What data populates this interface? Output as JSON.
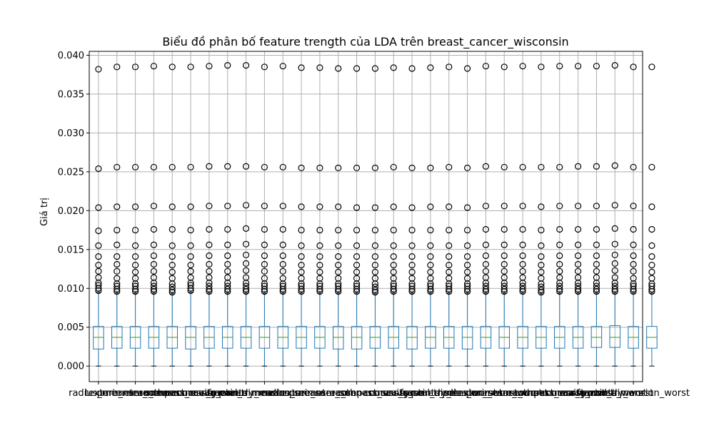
{
  "chart_data": {
    "type": "box",
    "title": "Biểu đồ phân bố feature trength của LDA trên breast_cancer_wisconsin",
    "xlabel": "",
    "ylabel": "Giá trị",
    "ylim": [
      -0.002,
      0.0405
    ],
    "yticks": [
      0.0,
      0.005,
      0.01,
      0.015,
      0.02,
      0.025,
      0.03,
      0.035,
      0.04
    ],
    "ytick_labels": [
      "0.000",
      "0.005",
      "0.010",
      "0.015",
      "0.020",
      "0.025",
      "0.030",
      "0.035",
      "0.040"
    ],
    "grid": true,
    "colors": {
      "box": "#1f77b4",
      "median": "#2ca02c",
      "whisker": "#1f77b4",
      "cap": "#000000",
      "flier": "#000000",
      "grid": "#b0b0b0"
    },
    "categories": [
      "radius_mean",
      "texture_mean",
      "perimeter_mean",
      "area_mean",
      "smoothness_mean",
      "compactness_mean",
      "concavity_mean",
      "concave points_mean",
      "symmetry_mean",
      "fractal_dimension_mean",
      "radius_se",
      "texture_se",
      "perimeter_se",
      "area_se",
      "smoothness_se",
      "compactness_se",
      "concavity_se",
      "concave points_se",
      "symmetry_se",
      "fractal_dimension_se",
      "radius_worst",
      "texture_worst",
      "perimeter_worst",
      "area_worst",
      "smoothness_worst",
      "compactness_worst",
      "concavity_worst",
      "concave points_worst",
      "symmetry_worst",
      "fractal_dimension_worst"
    ],
    "boxes": [
      {
        "whislo": 0.0,
        "q1": 0.0022,
        "med": 0.0037,
        "q3": 0.0051,
        "whishi": 0.0095,
        "fliers": [
          0.0097,
          0.01,
          0.0104,
          0.0107,
          0.0114,
          0.0122,
          0.013,
          0.0141,
          0.0155,
          0.0174,
          0.0204,
          0.0254,
          0.0382
        ]
      },
      {
        "whislo": 0.0,
        "q1": 0.0023,
        "med": 0.0037,
        "q3": 0.0051,
        "whishi": 0.0094,
        "fliers": [
          0.0096,
          0.0099,
          0.0103,
          0.0106,
          0.0113,
          0.0122,
          0.0131,
          0.0141,
          0.0156,
          0.0175,
          0.0205,
          0.0256,
          0.0385
        ]
      },
      {
        "whislo": 0.0,
        "q1": 0.0023,
        "med": 0.0037,
        "q3": 0.0051,
        "whishi": 0.0094,
        "fliers": [
          0.0096,
          0.0099,
          0.0103,
          0.0106,
          0.0113,
          0.0121,
          0.013,
          0.0141,
          0.0155,
          0.0175,
          0.0205,
          0.0256,
          0.0385
        ]
      },
      {
        "whislo": 0.0,
        "q1": 0.0023,
        "med": 0.0037,
        "q3": 0.0051,
        "whishi": 0.0094,
        "fliers": [
          0.0096,
          0.0099,
          0.0103,
          0.0107,
          0.0114,
          0.0122,
          0.0131,
          0.0142,
          0.0156,
          0.0176,
          0.0206,
          0.0256,
          0.0386
        ]
      },
      {
        "whislo": 0.0,
        "q1": 0.0023,
        "med": 0.0037,
        "q3": 0.0051,
        "whishi": 0.0093,
        "fliers": [
          0.0095,
          0.0098,
          0.0102,
          0.0106,
          0.0113,
          0.0121,
          0.013,
          0.0141,
          0.0155,
          0.0176,
          0.0205,
          0.0256,
          0.0385
        ]
      },
      {
        "whislo": 0.0,
        "q1": 0.0022,
        "med": 0.0037,
        "q3": 0.0051,
        "whishi": 0.0095,
        "fliers": [
          0.0097,
          0.01,
          0.0104,
          0.0107,
          0.0114,
          0.0122,
          0.013,
          0.0141,
          0.0155,
          0.0175,
          0.0205,
          0.0256,
          0.0385
        ]
      },
      {
        "whislo": 0.0,
        "q1": 0.0023,
        "med": 0.0037,
        "q3": 0.0051,
        "whishi": 0.0094,
        "fliers": [
          0.0096,
          0.0099,
          0.0103,
          0.0107,
          0.0114,
          0.0122,
          0.0131,
          0.0142,
          0.0156,
          0.0176,
          0.0206,
          0.0257,
          0.0386
        ]
      },
      {
        "whislo": 0.0,
        "q1": 0.0023,
        "med": 0.0037,
        "q3": 0.0051,
        "whishi": 0.0094,
        "fliers": [
          0.0096,
          0.0099,
          0.0103,
          0.0107,
          0.0114,
          0.0122,
          0.0131,
          0.0142,
          0.0156,
          0.0176,
          0.0206,
          0.0257,
          0.0387
        ]
      },
      {
        "whislo": 0.0,
        "q1": 0.0023,
        "med": 0.0037,
        "q3": 0.0051,
        "whishi": 0.0094,
        "fliers": [
          0.0096,
          0.0099,
          0.0103,
          0.0107,
          0.0114,
          0.0123,
          0.0132,
          0.0143,
          0.0157,
          0.0177,
          0.0207,
          0.0257,
          0.0387
        ]
      },
      {
        "whislo": 0.0,
        "q1": 0.0023,
        "med": 0.0037,
        "q3": 0.0051,
        "whishi": 0.0094,
        "fliers": [
          0.0096,
          0.0099,
          0.0103,
          0.0106,
          0.0113,
          0.0122,
          0.0131,
          0.0142,
          0.0156,
          0.0176,
          0.0206,
          0.0256,
          0.0385
        ]
      },
      {
        "whislo": 0.0,
        "q1": 0.0023,
        "med": 0.0037,
        "q3": 0.0051,
        "whishi": 0.0094,
        "fliers": [
          0.0096,
          0.0099,
          0.0103,
          0.0106,
          0.0113,
          0.0122,
          0.0131,
          0.0142,
          0.0156,
          0.0176,
          0.0206,
          0.0256,
          0.0386
        ]
      },
      {
        "whislo": 0.0,
        "q1": 0.0023,
        "med": 0.0037,
        "q3": 0.0051,
        "whishi": 0.0094,
        "fliers": [
          0.0096,
          0.0099,
          0.0103,
          0.0106,
          0.0113,
          0.0121,
          0.013,
          0.0141,
          0.0155,
          0.0175,
          0.0205,
          0.0255,
          0.0384
        ]
      },
      {
        "whislo": 0.0,
        "q1": 0.0023,
        "med": 0.0037,
        "q3": 0.0051,
        "whishi": 0.0094,
        "fliers": [
          0.0096,
          0.0099,
          0.0103,
          0.0106,
          0.0113,
          0.0121,
          0.013,
          0.0141,
          0.0155,
          0.0175,
          0.0205,
          0.0255,
          0.0384
        ]
      },
      {
        "whislo": 0.0,
        "q1": 0.0022,
        "med": 0.0037,
        "q3": 0.0051,
        "whishi": 0.0094,
        "fliers": [
          0.0096,
          0.0099,
          0.0103,
          0.0106,
          0.0113,
          0.0121,
          0.013,
          0.0141,
          0.0155,
          0.0175,
          0.0205,
          0.0255,
          0.0383
        ]
      },
      {
        "whislo": 0.0,
        "q1": 0.0022,
        "med": 0.0037,
        "q3": 0.0051,
        "whishi": 0.0094,
        "fliers": [
          0.0096,
          0.0099,
          0.0103,
          0.0106,
          0.0113,
          0.0121,
          0.013,
          0.0141,
          0.0155,
          0.0175,
          0.0204,
          0.0255,
          0.0383
        ]
      },
      {
        "whislo": 0.0,
        "q1": 0.0023,
        "med": 0.0037,
        "q3": 0.0051,
        "whishi": 0.0093,
        "fliers": [
          0.0095,
          0.0098,
          0.0102,
          0.0106,
          0.0113,
          0.0121,
          0.013,
          0.0141,
          0.0155,
          0.0175,
          0.0204,
          0.0255,
          0.0383
        ]
      },
      {
        "whislo": 0.0,
        "q1": 0.0023,
        "med": 0.0037,
        "q3": 0.0051,
        "whishi": 0.0094,
        "fliers": [
          0.0096,
          0.0099,
          0.0103,
          0.0106,
          0.0113,
          0.0121,
          0.013,
          0.0141,
          0.0155,
          0.0175,
          0.0205,
          0.0256,
          0.0384
        ]
      },
      {
        "whislo": 0.0,
        "q1": 0.0022,
        "med": 0.0037,
        "q3": 0.0051,
        "whishi": 0.0094,
        "fliers": [
          0.0096,
          0.0099,
          0.0103,
          0.0106,
          0.0113,
          0.0121,
          0.013,
          0.0141,
          0.0155,
          0.0175,
          0.0204,
          0.0255,
          0.0383
        ]
      },
      {
        "whislo": 0.0,
        "q1": 0.0023,
        "med": 0.0037,
        "q3": 0.0051,
        "whishi": 0.0094,
        "fliers": [
          0.0096,
          0.0099,
          0.0103,
          0.0106,
          0.0113,
          0.0121,
          0.013,
          0.0141,
          0.0155,
          0.0175,
          0.0205,
          0.0255,
          0.0384
        ]
      },
      {
        "whislo": 0.0,
        "q1": 0.0023,
        "med": 0.0037,
        "q3": 0.0051,
        "whishi": 0.0094,
        "fliers": [
          0.0096,
          0.0099,
          0.0103,
          0.0106,
          0.0113,
          0.0121,
          0.013,
          0.0141,
          0.0155,
          0.0175,
          0.0205,
          0.0256,
          0.0385
        ]
      },
      {
        "whislo": 0.0,
        "q1": 0.0022,
        "med": 0.0037,
        "q3": 0.0051,
        "whishi": 0.0094,
        "fliers": [
          0.0096,
          0.0099,
          0.0103,
          0.0106,
          0.0113,
          0.0121,
          0.013,
          0.0141,
          0.0155,
          0.0175,
          0.0204,
          0.0255,
          0.0383
        ]
      },
      {
        "whislo": 0.0,
        "q1": 0.0023,
        "med": 0.0037,
        "q3": 0.0051,
        "whishi": 0.0094,
        "fliers": [
          0.0096,
          0.0099,
          0.0103,
          0.0107,
          0.0114,
          0.0122,
          0.0131,
          0.0142,
          0.0156,
          0.0176,
          0.0206,
          0.0257,
          0.0386
        ]
      },
      {
        "whislo": 0.0,
        "q1": 0.0023,
        "med": 0.0037,
        "q3": 0.0051,
        "whishi": 0.0094,
        "fliers": [
          0.0096,
          0.0099,
          0.0103,
          0.0107,
          0.0114,
          0.0122,
          0.0131,
          0.0142,
          0.0156,
          0.0176,
          0.0206,
          0.0256,
          0.0385
        ]
      },
      {
        "whislo": 0.0,
        "q1": 0.0023,
        "med": 0.0037,
        "q3": 0.0051,
        "whishi": 0.0094,
        "fliers": [
          0.0096,
          0.0099,
          0.0103,
          0.0107,
          0.0114,
          0.0122,
          0.0131,
          0.0142,
          0.0156,
          0.0176,
          0.0206,
          0.0256,
          0.0386
        ]
      },
      {
        "whislo": 0.0,
        "q1": 0.0023,
        "med": 0.0037,
        "q3": 0.0051,
        "whishi": 0.0093,
        "fliers": [
          0.0095,
          0.0098,
          0.0102,
          0.0106,
          0.0113,
          0.0121,
          0.013,
          0.0141,
          0.0155,
          0.0175,
          0.0205,
          0.0256,
          0.0385
        ]
      },
      {
        "whislo": 0.0,
        "q1": 0.0023,
        "med": 0.0037,
        "q3": 0.0051,
        "whishi": 0.0094,
        "fliers": [
          0.0096,
          0.0099,
          0.0103,
          0.0107,
          0.0114,
          0.0122,
          0.0131,
          0.0142,
          0.0156,
          0.0176,
          0.0206,
          0.0256,
          0.0386
        ]
      },
      {
        "whislo": 0.0,
        "q1": 0.0023,
        "med": 0.0037,
        "q3": 0.0051,
        "whishi": 0.0094,
        "fliers": [
          0.0096,
          0.0099,
          0.0103,
          0.0107,
          0.0114,
          0.0122,
          0.0131,
          0.0142,
          0.0156,
          0.0176,
          0.0206,
          0.0257,
          0.0386
        ]
      },
      {
        "whislo": 0.0,
        "q1": 0.0024,
        "med": 0.0037,
        "q3": 0.0051,
        "whishi": 0.0094,
        "fliers": [
          0.0096,
          0.0099,
          0.0103,
          0.0107,
          0.0114,
          0.0122,
          0.0131,
          0.0142,
          0.0156,
          0.0176,
          0.0206,
          0.0257,
          0.0386
        ]
      },
      {
        "whislo": 0.0,
        "q1": 0.0024,
        "med": 0.0037,
        "q3": 0.0052,
        "whishi": 0.0094,
        "fliers": [
          0.0096,
          0.0099,
          0.0103,
          0.0107,
          0.0114,
          0.0123,
          0.0132,
          0.0143,
          0.0157,
          0.0177,
          0.0207,
          0.0258,
          0.0387
        ]
      },
      {
        "whislo": 0.0,
        "q1": 0.0023,
        "med": 0.0037,
        "q3": 0.0051,
        "whishi": 0.0094,
        "fliers": [
          0.0096,
          0.0099,
          0.0103,
          0.0106,
          0.0113,
          0.0122,
          0.0131,
          0.0142,
          0.0156,
          0.0176,
          0.0206,
          0.0256,
          0.0385
        ]
      },
      {
        "whislo": 0.0,
        "q1": 0.0023,
        "med": 0.0037,
        "q3": 0.0051,
        "whishi": 0.0094,
        "fliers": [
          0.0096,
          0.0099,
          0.0103,
          0.0106,
          0.0113,
          0.0121,
          0.013,
          0.0141,
          0.0155,
          0.0176,
          0.0205,
          0.0256,
          0.0385
        ]
      }
    ]
  }
}
